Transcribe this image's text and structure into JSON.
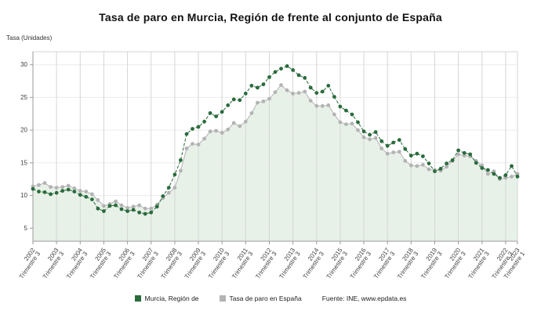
{
  "header": {
    "title": "Tasa de paro en Murcia, Región de frente al conjunto de España"
  },
  "axis": {
    "y_label": "Tasa (Unidades)"
  },
  "footer": {
    "source_prefix": "Fuente: INE, ",
    "source_link": "www.epdata.es"
  },
  "chart_data": {
    "type": "line",
    "title": "Tasa de paro en Murcia, Región de frente al conjunto de España",
    "ylabel": "Tasa (Unidades)",
    "ylim": [
      3,
      32
    ],
    "y_ticks": [
      5,
      10,
      15,
      20,
      25,
      30
    ],
    "x_start": "2002 Trimestre 3",
    "x_end": "2023 Trimestre 1",
    "grid_color": "#d6d6d6",
    "grid_color_h": "#ececec",
    "axis_color": "#9a9a9a",
    "area_fill": "#e7f1e8",
    "x_ticks": [
      {
        "index": 0,
        "year": "2002",
        "quarter": "Trimestre 3"
      },
      {
        "index": 4,
        "year": "2003",
        "quarter": "Trimestre 3"
      },
      {
        "index": 8,
        "year": "2004",
        "quarter": "Trimestre 3"
      },
      {
        "index": 12,
        "year": "2005",
        "quarter": "Trimestre 3"
      },
      {
        "index": 16,
        "year": "2006",
        "quarter": "Trimestre 3"
      },
      {
        "index": 20,
        "year": "2007",
        "quarter": "Trimestre 3"
      },
      {
        "index": 24,
        "year": "2008",
        "quarter": "Trimestre 3"
      },
      {
        "index": 28,
        "year": "2009",
        "quarter": "Trimestre 3"
      },
      {
        "index": 32,
        "year": "2010",
        "quarter": "Trimestre 3"
      },
      {
        "index": 36,
        "year": "2011",
        "quarter": "Trimestre 3"
      },
      {
        "index": 40,
        "year": "2012",
        "quarter": "Trimestre 3"
      },
      {
        "index": 44,
        "year": "2013",
        "quarter": "Trimestre 3"
      },
      {
        "index": 48,
        "year": "2014",
        "quarter": "Trimestre 3"
      },
      {
        "index": 52,
        "year": "2015",
        "quarter": "Trimestre 3"
      },
      {
        "index": 56,
        "year": "2016",
        "quarter": "Trimestre 3"
      },
      {
        "index": 60,
        "year": "2017",
        "quarter": "Trimestre 3"
      },
      {
        "index": 64,
        "year": "2018",
        "quarter": "Trimestre 3"
      },
      {
        "index": 68,
        "year": "2019",
        "quarter": "Trimestre 3"
      },
      {
        "index": 72,
        "year": "2020",
        "quarter": "Trimestre 3"
      },
      {
        "index": 76,
        "year": "2021",
        "quarter": "Trimestre 3"
      },
      {
        "index": 80,
        "year": "2022",
        "quarter": "Trimestre 3"
      },
      {
        "index": 82,
        "year": "2023",
        "quarter": "Trimestre 1"
      }
    ],
    "series": [
      {
        "name": "Murcia, Región de",
        "color": "#2a6b3c",
        "dash": "4 2",
        "area": false,
        "values": [
          11.0,
          10.6,
          10.5,
          10.2,
          10.4,
          10.7,
          10.9,
          10.6,
          10.1,
          9.8,
          9.4,
          8.0,
          7.6,
          8.4,
          8.5,
          7.9,
          7.6,
          7.8,
          7.4,
          7.2,
          7.4,
          8.3,
          9.9,
          11.2,
          13.2,
          15.4,
          19.4,
          20.2,
          20.5,
          21.3,
          22.6,
          22.1,
          22.8,
          23.8,
          24.7,
          24.6,
          25.6,
          26.8,
          26.5,
          27.0,
          28.1,
          28.9,
          29.4,
          29.8,
          29.2,
          28.4,
          28.0,
          26.5,
          25.7,
          25.9,
          26.8,
          25.1,
          23.6,
          23.0,
          22.4,
          21.2,
          19.8,
          19.3,
          19.7,
          18.3,
          17.6,
          18.1,
          18.5,
          17.1,
          16.1,
          16.4,
          16.0,
          14.9,
          13.7,
          14.1,
          14.9,
          15.4,
          16.9,
          16.5,
          16.3,
          15.0,
          14.2,
          13.9,
          13.3,
          12.7,
          13.1,
          14.5,
          12.9
        ]
      },
      {
        "name": "Tasa de paro en España",
        "color": "#b3b3b3",
        "dash": "",
        "area": true,
        "values": [
          11.4,
          11.6,
          11.9,
          11.3,
          11.2,
          11.3,
          11.5,
          11.1,
          10.7,
          10.6,
          10.2,
          9.3,
          8.4,
          8.7,
          9.1,
          8.5,
          8.1,
          8.3,
          8.5,
          8.0,
          8.0,
          8.6,
          9.6,
          10.4,
          11.2,
          13.8,
          17.2,
          17.9,
          17.8,
          18.7,
          19.8,
          19.9,
          19.6,
          20.1,
          21.1,
          20.6,
          21.3,
          22.6,
          24.2,
          24.4,
          24.8,
          25.8,
          26.9,
          26.1,
          25.6,
          25.7,
          25.9,
          24.5,
          23.7,
          23.7,
          23.8,
          22.4,
          21.2,
          20.9,
          21.0,
          20.0,
          18.9,
          18.6,
          18.8,
          17.2,
          16.4,
          16.6,
          16.7,
          15.3,
          14.6,
          14.5,
          14.7,
          14.0,
          13.9,
          13.8,
          14.4,
          15.3,
          16.3,
          16.1,
          16.0,
          15.3,
          14.6,
          13.3,
          13.7,
          12.5,
          12.7,
          12.9,
          13.3
        ]
      }
    ]
  }
}
